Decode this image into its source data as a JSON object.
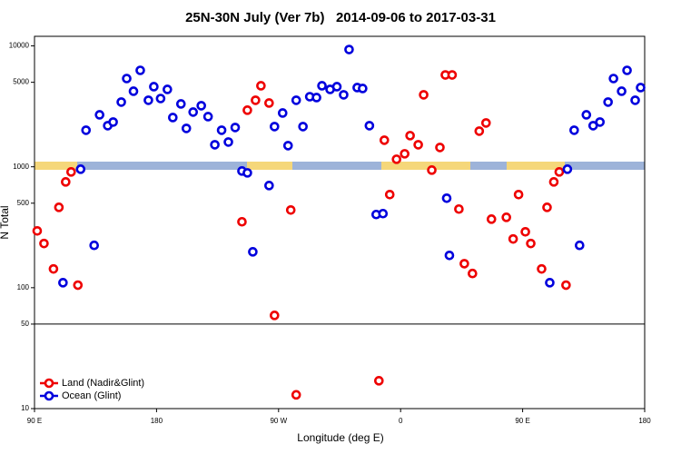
{
  "chart_data": {
    "type": "scatter",
    "title": "25N-30N July (Ver 7b)   2014-09-06 to 2017-03-31",
    "x_label": "Longitude (deg E)",
    "y_label": "N Total",
    "log_y": true,
    "legend": "bottom-left",
    "reference_line": 50,
    "xlim": [
      90,
      540
    ],
    "ylim": [
      10,
      12000
    ],
    "xticks": [
      {
        "value": 90,
        "label": "90 E"
      },
      {
        "value": 180,
        "label": "180"
      },
      {
        "value": 270,
        "label": "90 W"
      },
      {
        "value": 360,
        "label": "0"
      },
      {
        "value": 450,
        "label": "90 E"
      },
      {
        "value": 540,
        "label": "180"
      }
    ],
    "yticks": [
      10,
      50,
      100,
      500,
      1000,
      5000,
      10000
    ],
    "series": [
      {
        "name": "Land (Nadir&Glint)",
        "color": "#ee0000",
        "x": [
          92,
          97,
          104,
          108,
          113,
          117,
          122,
          243,
          247,
          253,
          257,
          263,
          267,
          279,
          283,
          344,
          348,
          352,
          357,
          363,
          367,
          373,
          377,
          383,
          389,
          393,
          398,
          403,
          407,
          413,
          418,
          423,
          427,
          438,
          443,
          447,
          452,
          456,
          464,
          468,
          473,
          477,
          482
        ],
        "values": [
          295,
          232,
          143,
          462,
          750,
          907,
          105,
          351,
          2940,
          3550,
          4680,
          3370,
          59,
          439,
          13,
          17,
          1660,
          589,
          1155,
          1281,
          1810,
          1522,
          3940,
          939,
          1445,
          5750,
          5750,
          447,
          158,
          131,
          1972,
          2305,
          369,
          382,
          253,
          589,
          290,
          232,
          143,
          462,
          750,
          907,
          105
        ]
      },
      {
        "name": "Ocean (Glint)",
        "color": "#0000dd",
        "x": [
          111,
          124,
          128,
          134,
          138,
          144,
          148,
          154,
          158,
          163,
          168,
          174,
          178,
          183,
          188,
          192,
          198,
          202,
          207,
          213,
          218,
          223,
          228,
          233,
          238,
          243,
          247,
          251,
          263,
          267,
          273,
          277,
          283,
          288,
          293,
          298,
          302,
          308,
          313,
          318,
          322,
          328,
          332,
          337,
          342,
          347,
          394,
          396,
          470,
          483,
          488,
          492,
          497,
          502,
          507,
          513,
          517,
          523,
          527,
          533,
          537
        ],
        "values": [
          110,
          955,
          2007,
          224,
          2690,
          2188,
          2344,
          3430,
          5370,
          4217,
          6275,
          3550,
          4597,
          3670,
          4365,
          2555,
          3311,
          2077,
          2835,
          3200,
          2600,
          1522,
          2007,
          1603,
          2113,
          923,
          891,
          198,
          700,
          2150,
          2786,
          1496,
          3550,
          2150,
          3800,
          3737,
          4680,
          4365,
          4597,
          3940,
          9333,
          4519,
          4442,
          2188,
          403,
          410,
          550,
          185,
          110,
          955,
          2007,
          224,
          2690,
          2188,
          2344,
          3430,
          5370,
          4217,
          6275,
          3550,
          4519
        ]
      }
    ]
  }
}
